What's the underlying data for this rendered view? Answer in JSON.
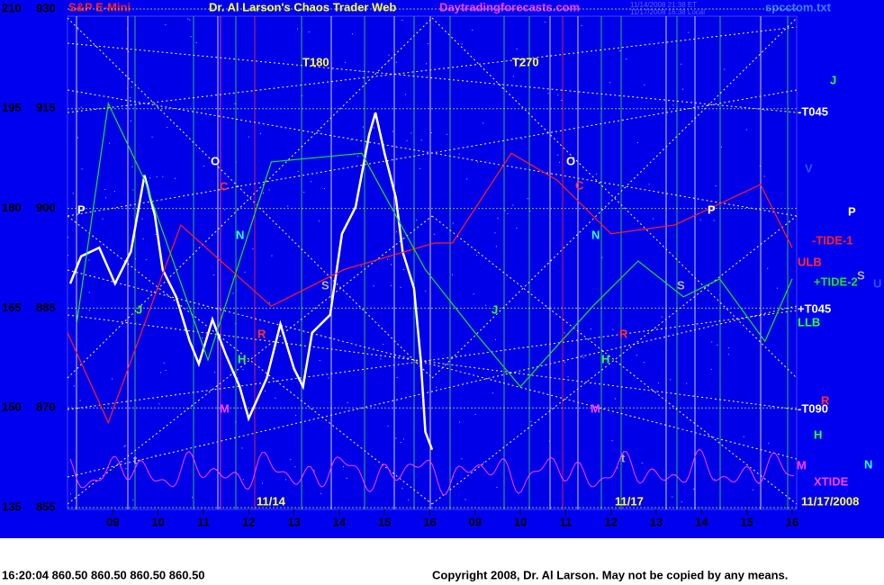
{
  "header": {
    "title_left": "S&P E-Mini",
    "title": "Dr. Al Larson's Chaos Trader Web",
    "site": "Daytradingforecasts.com",
    "file": "spcctom.txt",
    "stamp1": "11/14/2008 21:38 ET",
    "stamp2": "11/17/2008 16:38 Local"
  },
  "chart_data": {
    "type": "line",
    "xlim": [
      0,
      16.1
    ],
    "xticks": [
      {
        "value": 1,
        "label": "09"
      },
      {
        "value": 2,
        "label": "10"
      },
      {
        "value": 3,
        "label": "11"
      },
      {
        "value": 4,
        "label": "12"
      },
      {
        "value": 5,
        "label": "13"
      },
      {
        "value": 6,
        "label": "14"
      },
      {
        "value": 7,
        "label": "15"
      },
      {
        "value": 8,
        "label": "16"
      },
      {
        "value": 9,
        "label": "09"
      },
      {
        "value": 10,
        "label": "10"
      },
      {
        "value": 11,
        "label": "11"
      },
      {
        "value": 12,
        "label": "12"
      },
      {
        "value": 13,
        "label": "13"
      },
      {
        "value": 14,
        "label": "14"
      },
      {
        "value": 15,
        "label": "15"
      },
      {
        "value": 16,
        "label": "16"
      }
    ],
    "ylim": [
      855,
      930
    ],
    "yticks": [
      855,
      870,
      885,
      900,
      915,
      930
    ],
    "y2lim": [
      135,
      210
    ],
    "y2ticks": [
      135,
      150,
      165,
      180,
      195,
      210
    ],
    "grid": true,
    "dates": [
      "11/14",
      "11/17",
      "11/17/2008"
    ],
    "series": [
      {
        "color": "#ffffff",
        "x": [
          0.06,
          0.3,
          0.7,
          1.05,
          1.4,
          1.7,
          1.93,
          2.1,
          2.4,
          2.7,
          2.9,
          3.2,
          3.5,
          3.8,
          4.0,
          4.4,
          4.7,
          5.0,
          5.2,
          5.4,
          5.8,
          6.06,
          6.36,
          6.66,
          6.8,
          7.0,
          7.25,
          7.4,
          7.65,
          7.8,
          7.9,
          8.05
        ],
        "values": [
          888.7,
          892.8,
          894.1,
          888.7,
          893.5,
          905,
          898.9,
          890.8,
          886.7,
          880,
          876.6,
          883.3,
          877.9,
          873.2,
          868.4,
          874.5,
          882.6,
          875.9,
          873.2,
          881.3,
          884,
          896.2,
          900.2,
          911.1,
          914.4,
          908.3,
          901.6,
          893.5,
          888,
          877.2,
          866.4,
          863.7
        ]
      },
      {
        "name": "-TIDE-1",
        "color": "#ff2020",
        "x": [
          0,
          0.9,
          2.5,
          4.5,
          6.1,
          8.1,
          8.5,
          9.8,
          10.8,
          12,
          13.4,
          15.3,
          16
        ],
        "values": [
          881.3,
          867.8,
          897.5,
          885.3,
          890.8,
          894.8,
          894.8,
          908.3,
          904.3,
          896.2,
          897.5,
          903.6,
          894.1
        ]
      },
      {
        "name": "+TIDE-2",
        "color": "#20e020",
        "x": [
          0.2,
          0.9,
          1.7,
          3.1,
          4.5,
          6.5,
          7.9,
          9,
          10,
          11.6,
          12.6,
          13.6,
          14.4,
          15.4,
          16
        ],
        "values": [
          882.6,
          915.8,
          904.3,
          877.2,
          907,
          908.3,
          890.8,
          881.3,
          873.2,
          885.3,
          892.1,
          886.7,
          889.4,
          880,
          889.4
        ]
      }
    ],
    "annotations": [
      "T180",
      "T270",
      "O",
      "C",
      "N",
      "P",
      "J",
      "S",
      "R",
      "H",
      "M",
      "t",
      "O",
      "C",
      "N",
      "J",
      "H",
      "M",
      "R",
      "P",
      "S",
      "t",
      "J",
      "-T045",
      "V",
      "P",
      "ULB",
      "S",
      "U",
      "+T045",
      "LLB",
      "R",
      "-T090",
      "H",
      "M",
      "N",
      "XTIDE"
    ]
  },
  "footer": {
    "quote": "16:20:04 860.50 860.50 860.50 860.50",
    "copyright": "Copyright 2008, Dr. Al Larson. May not be copied by any means."
  }
}
